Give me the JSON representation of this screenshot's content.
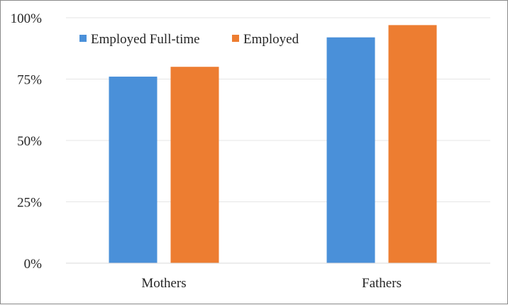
{
  "chart_data": {
    "type": "bar",
    "categories": [
      "Mothers",
      "Fathers"
    ],
    "series": [
      {
        "name": "Employed Full-time",
        "values": [
          76,
          92
        ],
        "color": "#4a90d9"
      },
      {
        "name": "Employed",
        "values": [
          80,
          97
        ],
        "color": "#ed7d31"
      }
    ],
    "ylim": [
      0,
      100
    ],
    "yticks": [
      0,
      25,
      50,
      75,
      100
    ],
    "ytick_labels": [
      "0%",
      "25%",
      "50%",
      "75%",
      "100%"
    ],
    "grid": true,
    "legend_position": "top-left"
  }
}
